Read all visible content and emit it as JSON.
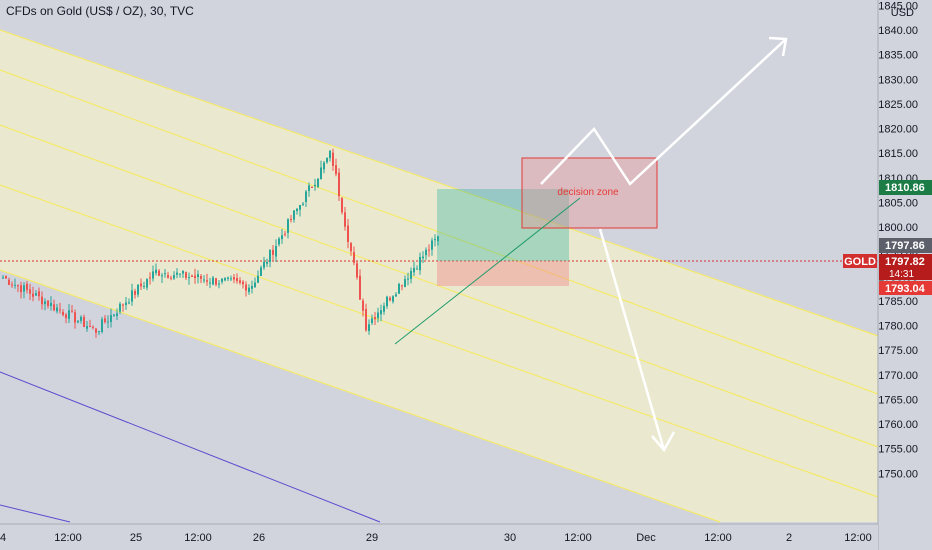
{
  "header": {
    "title": "CFDs on Gold (US$ / OZ), 30, TVC"
  },
  "price_axis": {
    "currency": "USD",
    "ticks": [
      "1845.00",
      "1840.00",
      "1835.00",
      "1830.00",
      "1825.00",
      "1820.00",
      "1815.00",
      "1810.00",
      "1805.00",
      "1800.00",
      "1795.00",
      "1790.00",
      "1785.00",
      "1780.00",
      "1775.00",
      "1770.00",
      "1765.00",
      "1760.00",
      "1755.00",
      "1750.00"
    ]
  },
  "time_axis": {
    "ticks": [
      "4",
      "12:00",
      "25",
      "12:00",
      "26",
      "29",
      "30",
      "12:00",
      "Dec",
      "12:00",
      "2",
      "12:00"
    ]
  },
  "price_tags": {
    "symbol": "GOLD",
    "last_price": "1797.82",
    "countdown": "14:31",
    "tag_a": "1810.86",
    "tag_b": "1797.86",
    "tag_c": "1793.04"
  },
  "annotations": {
    "decision_zone": "decision zone"
  },
  "colors": {
    "background": "#d1d4dc",
    "channel_fill": "#fff9c4",
    "channel_line": "#f5e96b",
    "up_candle": "#26a69a",
    "down_candle": "#ef5350",
    "purple_line": "#5b4ccf",
    "decision_zone": "#f28c8c",
    "arrow": "#ffffff"
  },
  "chart_data": {
    "type": "candlestick",
    "instrument": "CFDs on Gold (US$ / OZ)",
    "interval": "30",
    "source": "TVC",
    "ylim": [
      1748,
      1846
    ],
    "last_price": 1797.82,
    "levels": [
      1810.86,
      1797.86,
      1793.04
    ],
    "session_swings": [
      {
        "t": "24 PM",
        "price": 1790
      },
      {
        "t": "25 AM",
        "price": 1779
      },
      {
        "t": "25",
        "price": 1791
      },
      {
        "t": "26",
        "price": 1788
      },
      {
        "t": "26 PM",
        "price": 1815
      },
      {
        "t": "29",
        "price": 1780
      },
      {
        "t": "29 PM",
        "price": 1797.8
      }
    ]
  }
}
